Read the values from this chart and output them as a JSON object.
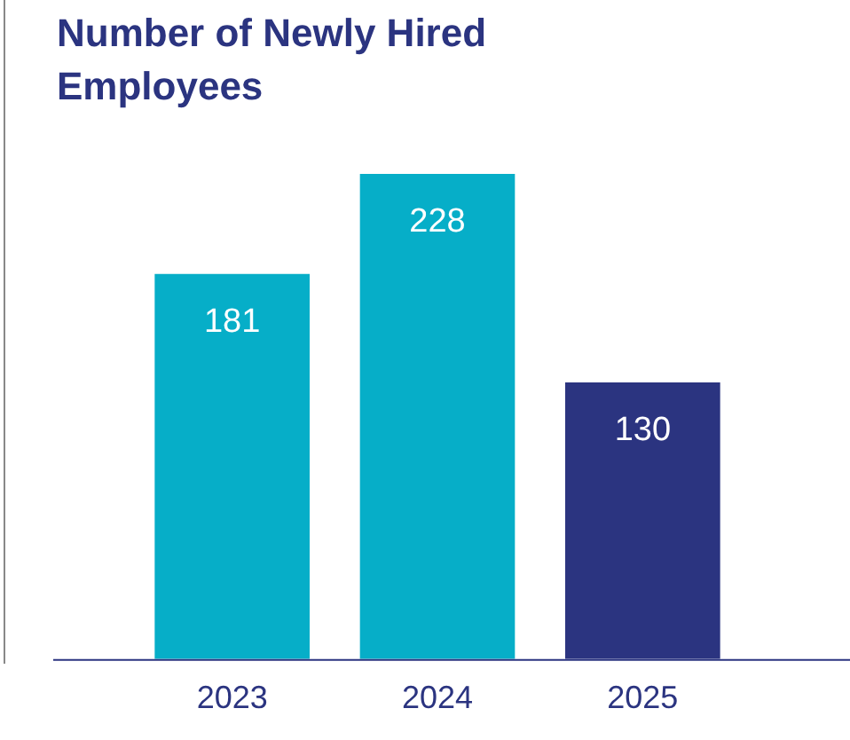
{
  "chart_data": {
    "type": "bar",
    "title": "Number of Newly Hired Employees",
    "categories": [
      "2023",
      "2024",
      "2025"
    ],
    "values": [
      181,
      228,
      130
    ],
    "colors": [
      "#06aec8",
      "#06aec8",
      "#2b3480"
    ],
    "tick_labels": "x",
    "data_labels": true,
    "grid": false,
    "legend": false
  }
}
